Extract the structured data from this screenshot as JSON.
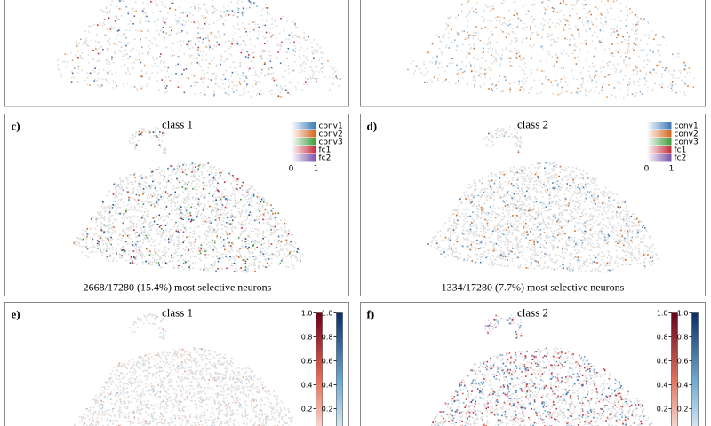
{
  "panels": [
    {
      "label": "c)",
      "title": "class 1",
      "legend": [
        "conv1",
        "conv2",
        "conv3",
        "fc1",
        "fc2"
      ],
      "legend_min": "0",
      "legend_max": "1",
      "caption": "2668/17280 (15.4%) most selective neurons"
    },
    {
      "label": "d)",
      "title": "class 2",
      "legend": [
        "conv1",
        "conv2",
        "conv3",
        "fc1",
        "fc2"
      ],
      "legend_min": "0",
      "legend_max": "1",
      "caption": "1334/17280 (7.7%) most selective neurons"
    },
    {
      "label": "e)",
      "title": "class 1",
      "colorbar_red_ticks": [
        "1.0",
        "0.8",
        "0.6",
        "0.4",
        "0.2"
      ],
      "colorbar_blue_ticks": [
        "1.0",
        "0.8",
        "0.6",
        "0.4",
        "0.2"
      ]
    },
    {
      "label": "f)",
      "title": "class 2",
      "colorbar_red_ticks": [
        "1.0",
        "0.8",
        "0.6",
        "0.4",
        "0.2"
      ],
      "colorbar_blue_ticks": [
        "1.0",
        "0.8",
        "0.6",
        "0.4",
        "0.2"
      ]
    }
  ]
}
